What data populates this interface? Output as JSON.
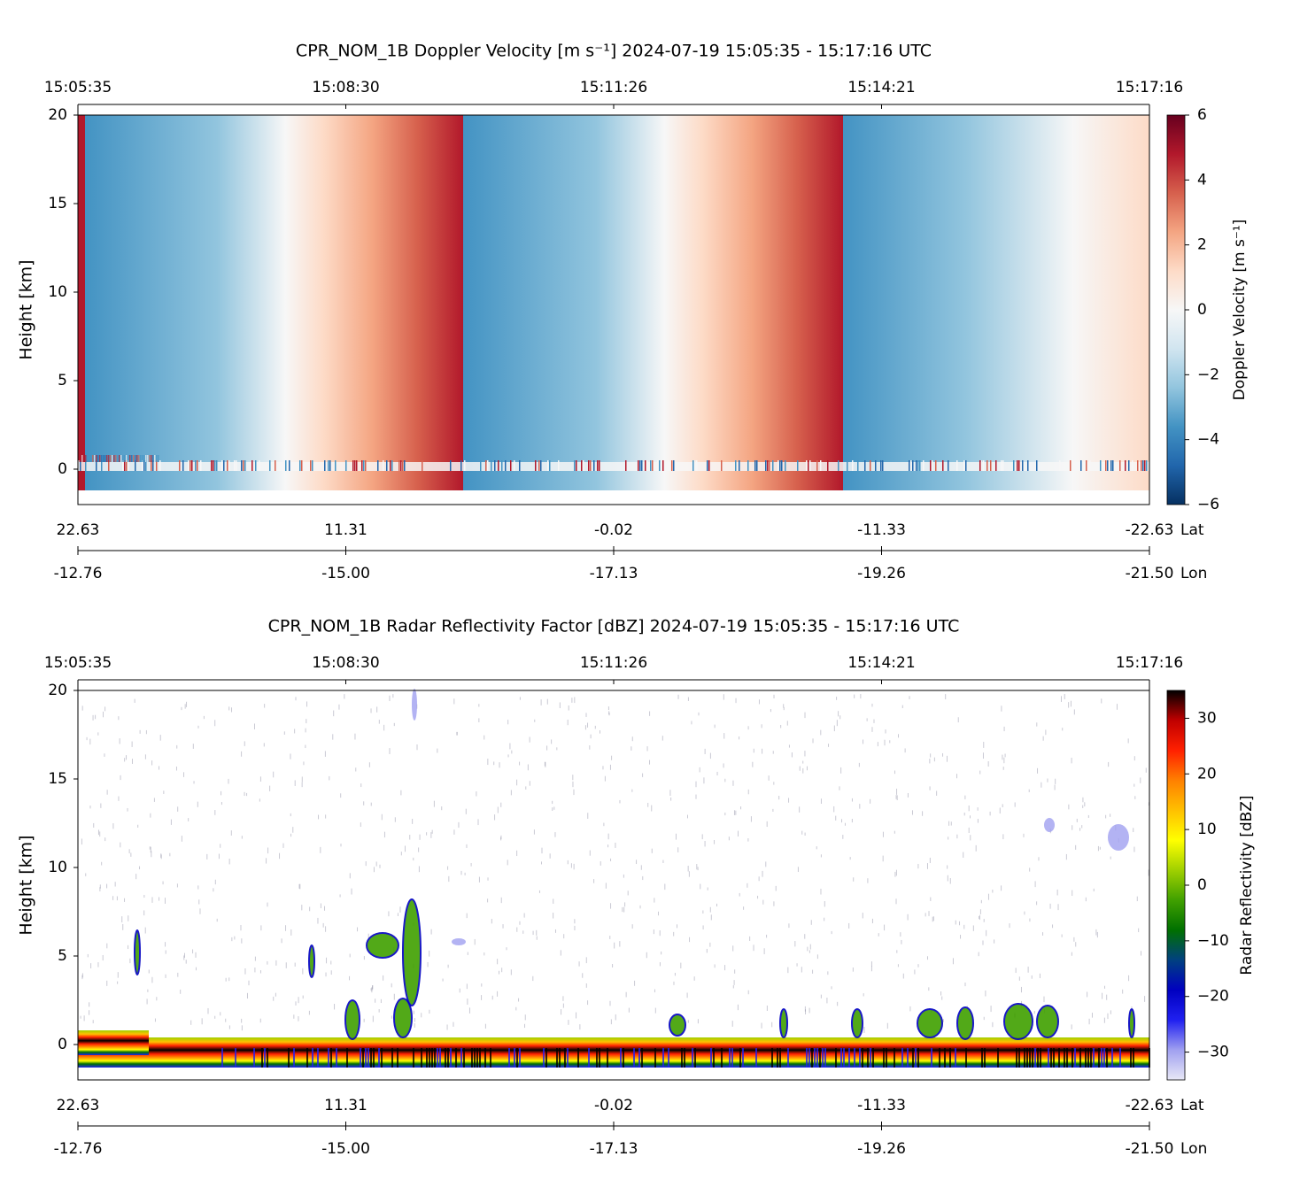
{
  "chart_data": [
    {
      "type": "heatmap",
      "title": "CPR_NOM_1B Doppler Velocity [m s⁻¹]    2024-07-19    15:05:35 - 15:17:16 UTC",
      "ylabel": "Height [km]",
      "ylim": [
        -2,
        20
      ],
      "yticks": [
        0,
        5,
        10,
        15,
        20
      ],
      "time_ticks": [
        "15:05:35",
        "15:08:30",
        "15:11:26",
        "15:14:21",
        "15:17:16"
      ],
      "lat_label": "Lat",
      "lat_ticks": [
        22.63,
        11.31,
        -0.02,
        -11.33,
        -22.63
      ],
      "lon_label": "Lon",
      "lon_ticks": [
        -12.76,
        {
          "value": -15,
          "label": "-15.00"
        },
        -17.13,
        -19.26,
        {
          "value": -21.5,
          "label": "-21.50"
        }
      ],
      "colorbar_label": "Doppler Velocity [m s⁻¹]",
      "clim": [
        -6,
        6
      ],
      "cticks": [
        {
          "value": -6,
          "label": "−6"
        },
        {
          "value": -4,
          "label": "−4"
        },
        {
          "value": -2,
          "label": "−2"
        },
        0,
        2,
        4,
        6
      ],
      "colormap": [
        "#053061",
        "#2166ac",
        "#4393c3",
        "#92c5de",
        "#d1e5f0",
        "#f7f7f7",
        "#fddbc7",
        "#f4a582",
        "#d6604d",
        "#b2182b",
        "#67001f"
      ]
    },
    {
      "type": "heatmap",
      "title": "CPR_NOM_1B Radar Reflectivity Factor [dBZ]    2024-07-19    15:05:35 - 15:17:16 UTC",
      "ylabel": "Height [km]",
      "ylim": [
        -2,
        20
      ],
      "yticks": [
        0,
        5,
        10,
        15,
        20
      ],
      "time_ticks": [
        "15:05:35",
        "15:08:30",
        "15:11:26",
        "15:14:21",
        "15:17:16"
      ],
      "lat_label": "Lat",
      "lat_ticks": [
        22.63,
        11.31,
        -0.02,
        -11.33,
        -22.63
      ],
      "lon_label": "Lon",
      "lon_ticks": [
        -12.76,
        {
          "value": -15,
          "label": "-15.00"
        },
        -17.13,
        -19.26,
        {
          "value": -21.5,
          "label": "-21.50"
        }
      ],
      "colorbar_label": "Radar Reflectivity [dBZ]",
      "clim": [
        -35,
        35
      ],
      "cticks": [
        {
          "value": -30,
          "label": "−30"
        },
        {
          "value": -20,
          "label": "−20"
        },
        {
          "value": -10,
          "label": "−10"
        },
        0,
        10,
        20,
        30
      ],
      "colormap": [
        "#e8e8f6",
        "#a0a0f0",
        "#2020f0",
        "#0000c0",
        "#004080",
        "#007000",
        "#40a000",
        "#a0d000",
        "#ffff00",
        "#ffc000",
        "#ff8000",
        "#ff2000",
        "#c00000",
        "#000000"
      ]
    }
  ]
}
